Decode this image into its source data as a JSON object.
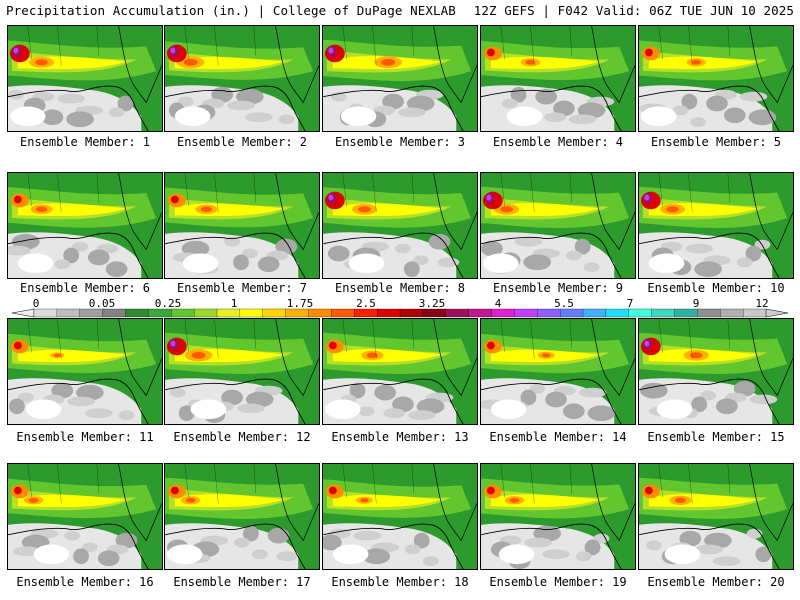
{
  "header": {
    "title": "Precipitation Accumulation (in.) | College of DuPage NEXLAB",
    "valid": "12Z GEFS | F042 Valid: 06Z TUE JUN 10 2025"
  },
  "panels": [
    {
      "label": "Ensemble Member: 1"
    },
    {
      "label": "Ensemble Member: 2"
    },
    {
      "label": "Ensemble Member: 3"
    },
    {
      "label": "Ensemble Member: 4"
    },
    {
      "label": "Ensemble Member: 5"
    },
    {
      "label": "Ensemble Member: 6"
    },
    {
      "label": "Ensemble Member: 7"
    },
    {
      "label": "Ensemble Member: 8"
    },
    {
      "label": "Ensemble Member: 9"
    },
    {
      "label": "Ensemble Member: 10"
    },
    {
      "label": "Ensemble Member: 11"
    },
    {
      "label": "Ensemble Member: 12"
    },
    {
      "label": "Ensemble Member: 13"
    },
    {
      "label": "Ensemble Member: 14"
    },
    {
      "label": "Ensemble Member: 15"
    },
    {
      "label": "Ensemble Member: 16"
    },
    {
      "label": "Ensemble Member: 17"
    },
    {
      "label": "Ensemble Member: 18"
    },
    {
      "label": "Ensemble Member: 19"
    },
    {
      "label": "Ensemble Member: 20"
    }
  ],
  "colorbar": {
    "labels": [
      "0",
      "0.05",
      "0.25",
      "1",
      "1.75",
      "2.5",
      "3.25",
      "4",
      "5.5",
      "7",
      "9",
      "12"
    ],
    "colors": [
      "#dcdcdc",
      "#bebebe",
      "#a0a0a0",
      "#828282",
      "#2e8b2e",
      "#3ca83c",
      "#62c62e",
      "#9bd82a",
      "#e8f020",
      "#ffff00",
      "#ffd700",
      "#ffb000",
      "#ff8c00",
      "#ff5a00",
      "#ff1e00",
      "#e00000",
      "#b00000",
      "#8b0018",
      "#a0105a",
      "#c01890",
      "#e020d0",
      "#c040ff",
      "#9060ff",
      "#6080ff",
      "#40b0ff",
      "#20e0ff",
      "#40ffe0",
      "#40d8c0",
      "#30b0a0",
      "#909090",
      "#b0b0b0",
      "#c8c8c8"
    ]
  },
  "legend_colors": {
    "ocean": "#2d9a2d",
    "land_dry": "#f4f4f4",
    "band_core": "#ffff00",
    "band_max": "#e00000"
  }
}
